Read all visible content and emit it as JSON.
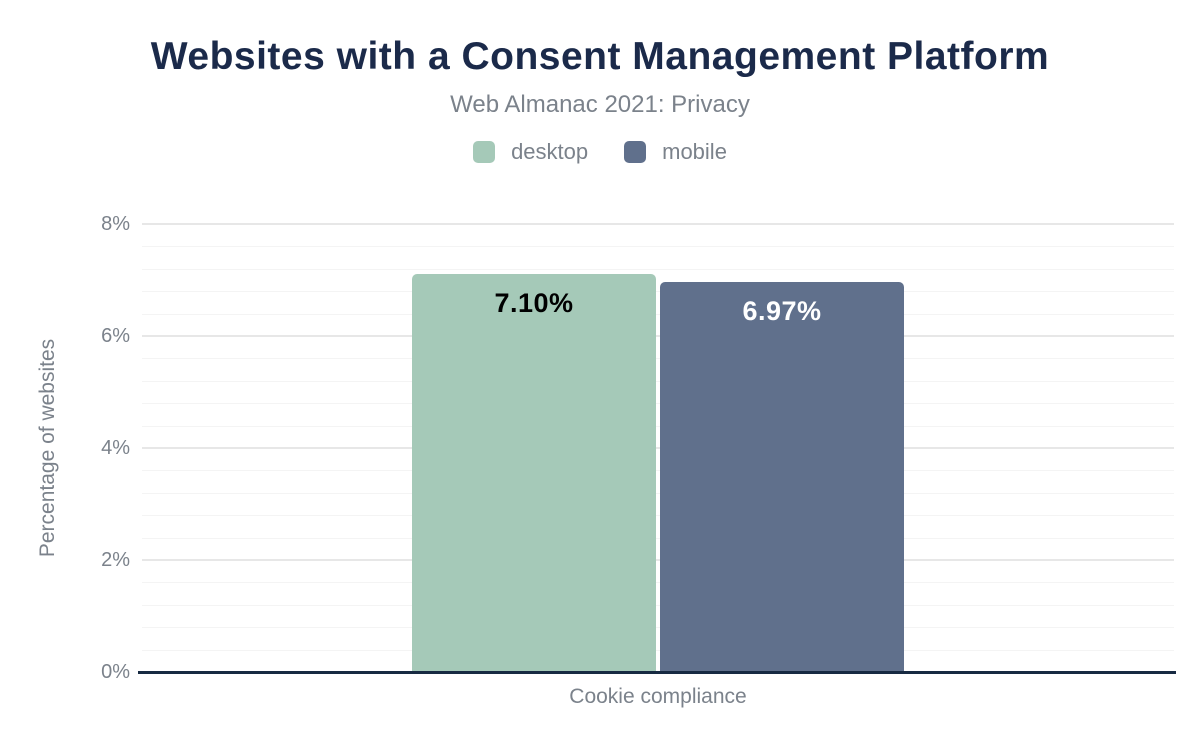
{
  "chart_data": {
    "type": "bar",
    "title": "Websites with a Consent Management Platform",
    "subtitle": "Web Almanac 2021: Privacy",
    "categories": [
      "Cookie compliance"
    ],
    "series": [
      {
        "name": "desktop",
        "values": [
          7.1
        ],
        "data_labels": [
          "7.10%"
        ],
        "color": "#a5c9b8",
        "label_color": "#000000"
      },
      {
        "name": "mobile",
        "values": [
          6.97
        ],
        "data_labels": [
          "6.97%"
        ],
        "color": "#60708c",
        "label_color": "#ffffff"
      }
    ],
    "xlabel": "Cookie compliance",
    "ylabel": "Percentage of websites",
    "ylim": [
      0,
      8
    ],
    "ytick_interval": 2,
    "minor_tick_interval": 0.4,
    "ytick_labels": [
      "0%",
      "2%",
      "4%",
      "6%",
      "8%"
    ],
    "grid": true,
    "legend_position": "top"
  },
  "colors": {
    "title": "#1b2a4a",
    "subtitle": "#7b828b",
    "axis_text": "#7b828b",
    "baseline": "#172a42",
    "major_grid": "#e7e7e7",
    "minor_grid": "#f4f4f4",
    "background": "#ffffff"
  }
}
